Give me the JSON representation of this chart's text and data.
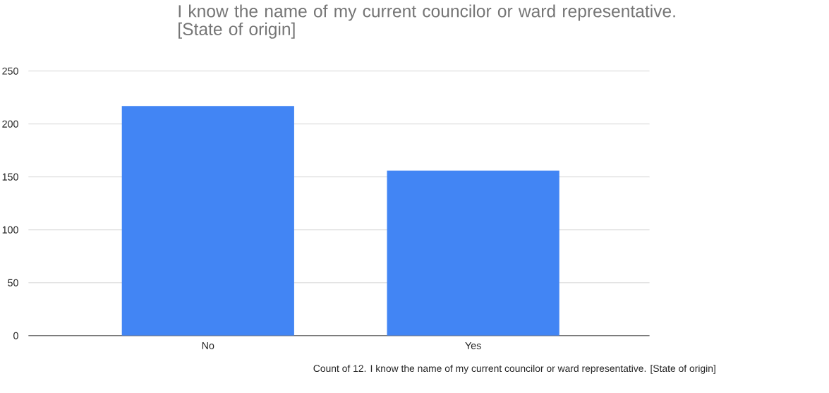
{
  "chart_data": {
    "type": "bar",
    "title": "I know the name of my current councilor or ward representative. [State of origin]",
    "categories": [
      "No",
      "Yes"
    ],
    "values": [
      217,
      156
    ],
    "color": "#4285f4",
    "ylim": [
      0,
      250
    ],
    "yticks": [
      0,
      50,
      100,
      150,
      200,
      250
    ],
    "grid": "y",
    "annotations": [
      "Count of 12. I know the name of my current councilor or ward representative. [State of origin]"
    ]
  }
}
